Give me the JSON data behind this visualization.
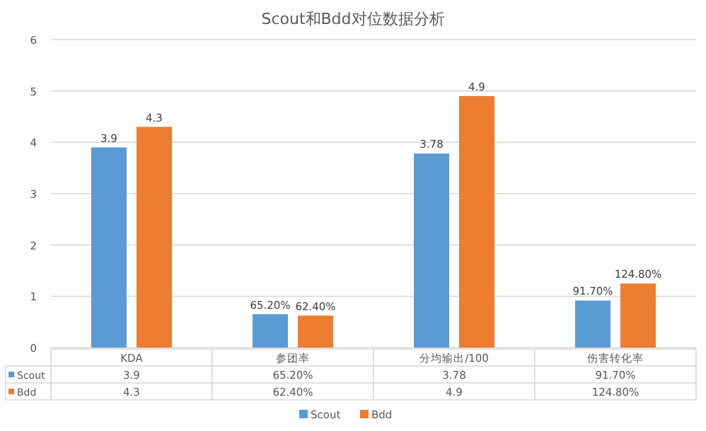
{
  "chart_data": {
    "type": "bar",
    "title": "Scout和Bdd对位数据分析",
    "categories": [
      "KDA",
      "参团率",
      "分均输出/100",
      "伤害转化率"
    ],
    "series": [
      {
        "name": "Scout",
        "color": "#5b9bd5",
        "values": [
          3.9,
          0.652,
          3.78,
          0.917
        ],
        "value_labels": [
          "3.9",
          "65.20%",
          "3.78",
          "91.70%"
        ]
      },
      {
        "name": "Bdd",
        "color": "#ed7d31",
        "values": [
          4.3,
          0.624,
          4.9,
          1.248
        ],
        "value_labels": [
          "4.3",
          "62.40%",
          "4.9",
          "124.80%"
        ]
      }
    ],
    "ylim": [
      0,
      6
    ],
    "yticks": [
      0,
      1,
      2,
      3,
      4,
      5,
      6
    ],
    "grid": "y",
    "legend": "bottom"
  }
}
